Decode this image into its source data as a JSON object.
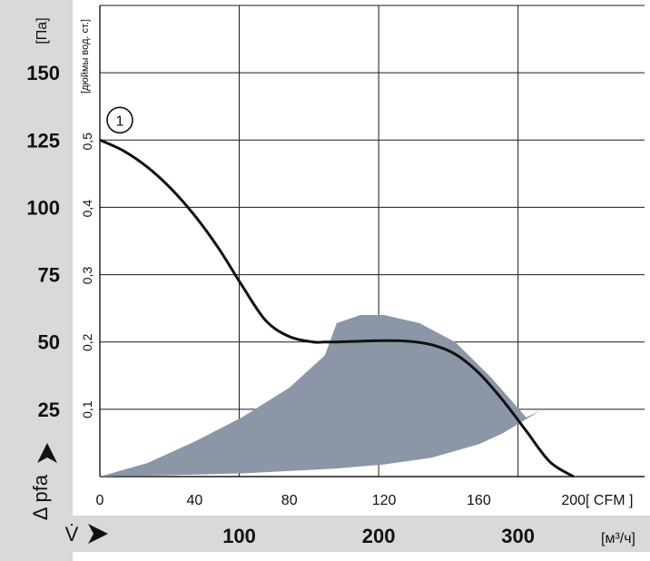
{
  "chart_data": {
    "type": "line",
    "x_axis_cfm": {
      "ticks": [
        "0",
        "40",
        "80",
        "120",
        "160",
        "200"
      ],
      "unit": "[ CFM ]",
      "range": [
        0,
        230
      ]
    },
    "x_axis_m3h": {
      "ticks": [
        "100",
        "200",
        "300"
      ],
      "tick_values_cfm": [
        58.86,
        117.72,
        176.58
      ],
      "unit": "[м³/ч]",
      "label": "V̇"
    },
    "y_axis_pa": {
      "ticks": [
        "25",
        "50",
        "75",
        "100",
        "125",
        "150"
      ],
      "unit": "[Па]",
      "label": "Δ pfa",
      "range": [
        0,
        175
      ]
    },
    "y_axis_inch": {
      "ticks": [
        "0,1",
        "0,2",
        "0,3",
        "0,4",
        "0,5"
      ],
      "tick_values_pa": [
        24.9,
        49.8,
        74.7,
        99.6,
        124.5
      ],
      "unit": "[дюймы вод. ст.]"
    },
    "curve_marker": "1",
    "series": [
      {
        "x": [
          0,
          10,
          20,
          30,
          40,
          50,
          60,
          70,
          80,
          90,
          95,
          100,
          110,
          120,
          130,
          140,
          150,
          160,
          170,
          180,
          190,
          200
        ],
        "y": [
          125,
          121,
          115,
          107,
          97,
          85,
          71,
          58,
          52,
          50,
          50,
          50,
          50.3,
          50.5,
          50.3,
          49,
          45.5,
          38.5,
          28.5,
          17,
          5.5,
          0
        ]
      }
    ],
    "operating_region": [
      [
        0,
        0
      ],
      [
        20,
        5
      ],
      [
        40,
        13
      ],
      [
        60,
        22
      ],
      [
        80,
        33
      ],
      [
        95,
        45
      ],
      [
        100,
        57
      ],
      [
        110,
        60
      ],
      [
        120,
        60
      ],
      [
        135,
        57
      ],
      [
        150,
        50
      ],
      [
        165,
        37
      ],
      [
        180,
        22
      ],
      [
        186,
        24.5
      ],
      [
        170,
        16
      ],
      [
        160,
        12
      ],
      [
        140,
        7
      ],
      [
        120,
        4.5
      ],
      [
        100,
        3
      ],
      [
        60,
        1.2
      ],
      [
        30,
        0.5
      ],
      [
        0,
        0
      ]
    ],
    "grid": true,
    "colors": {
      "curve": "#111111",
      "region": "#8b97a6",
      "grid": "#1a1a1a",
      "frame_bg": "#d9d9d9"
    }
  }
}
